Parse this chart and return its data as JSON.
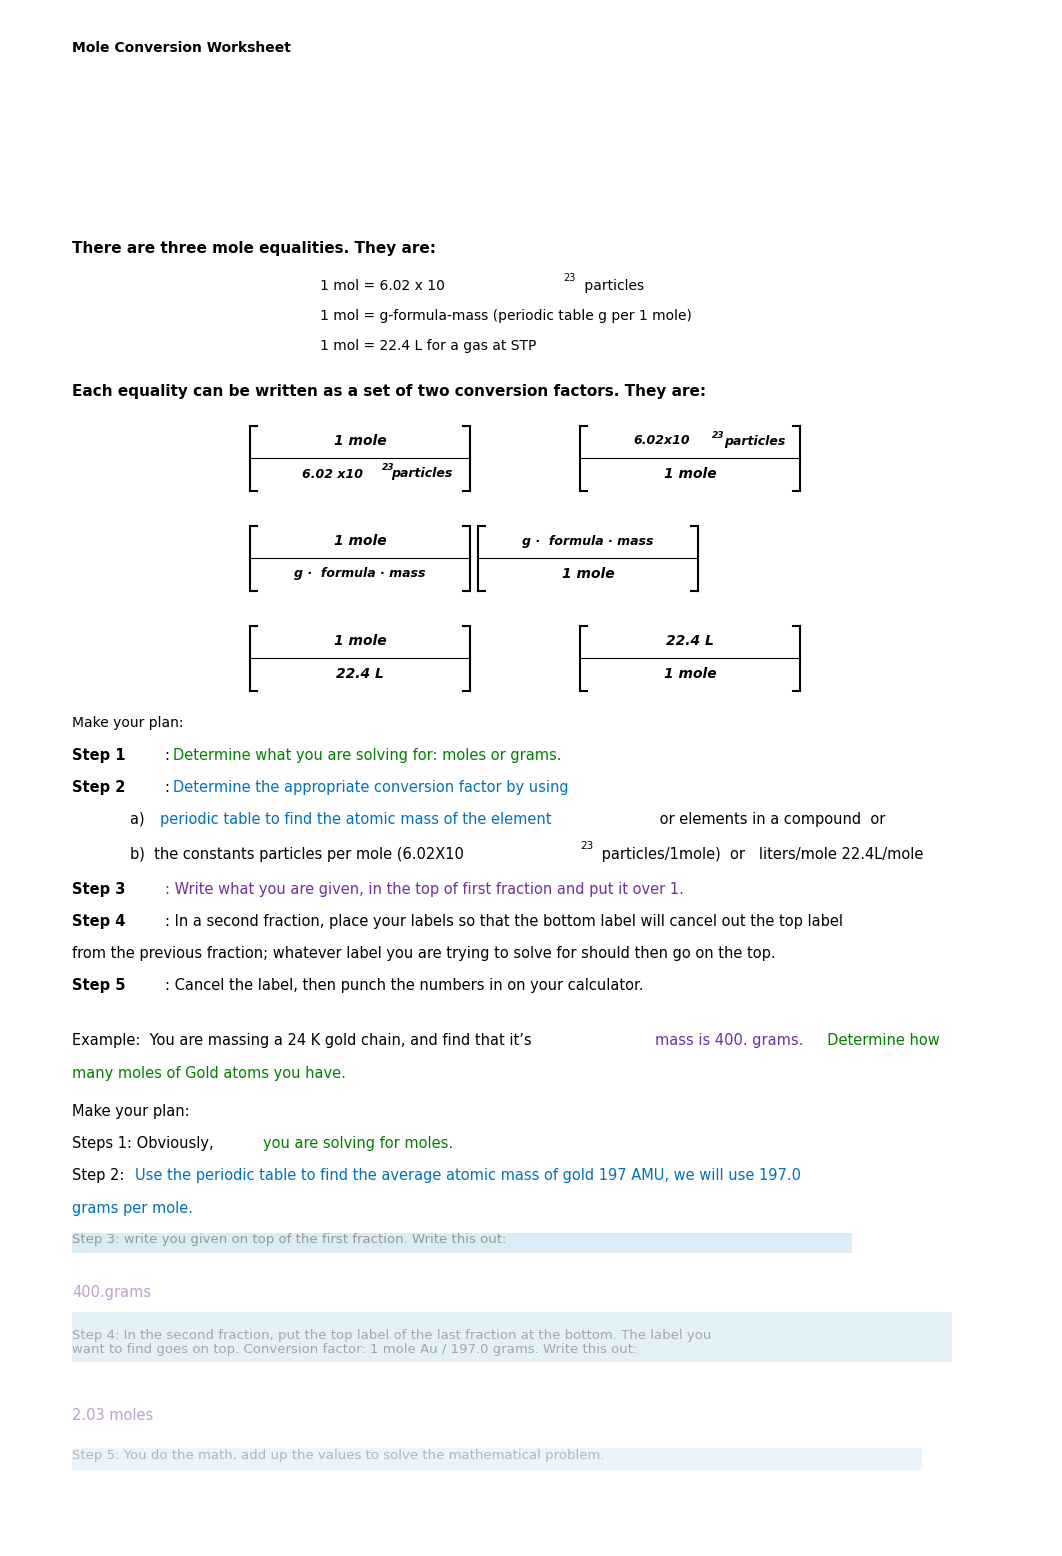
{
  "title": "Mole Conversion Worksheet",
  "bg_color": "#ffffff",
  "text_color": "#000000",
  "green_color": "#008000",
  "blue_color": "#0070C0",
  "purple_color": "#7030A0",
  "bold_intro": "There are three mole equalities. They are:",
  "factors_intro": "Each equality can be written as a set of two conversion factors. They are:"
}
